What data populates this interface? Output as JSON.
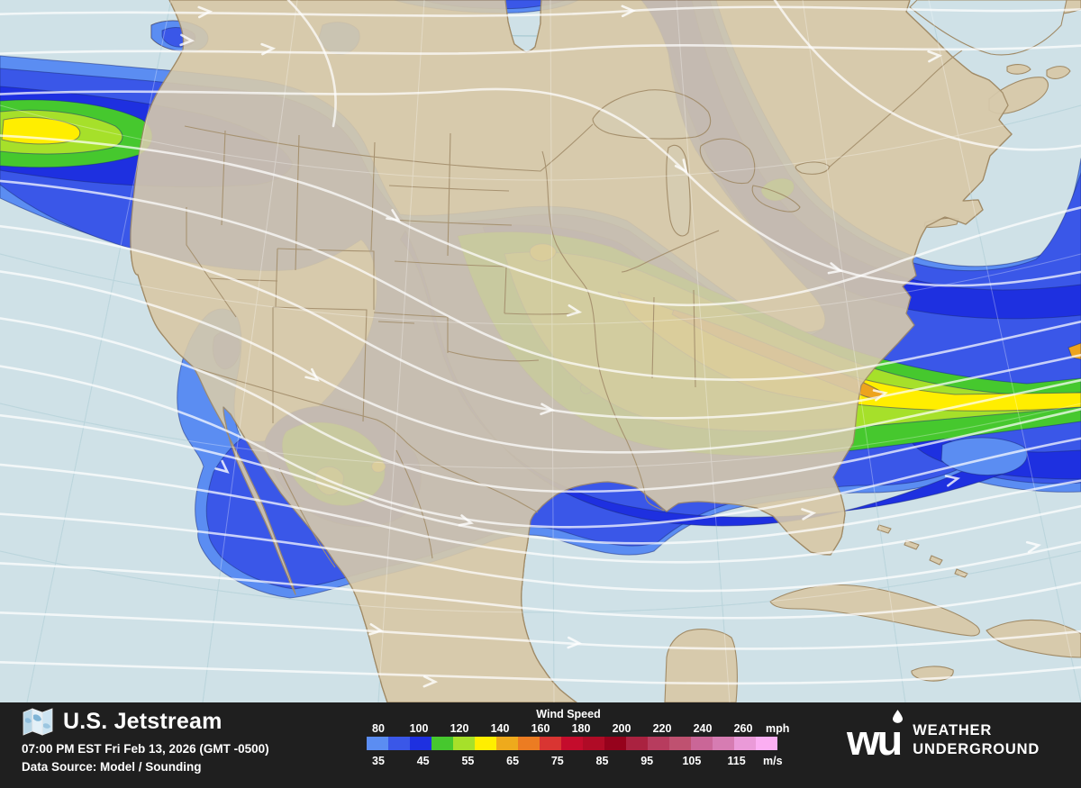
{
  "header": {
    "title": "U.S. Jetstream",
    "timestamp": "07:00 PM EST Fri Feb 13, 2026 (GMT -0500)",
    "data_source": "Data Source: Model / Sounding"
  },
  "legend": {
    "title": "Wind Speed",
    "mph_values": [
      "80",
      "100",
      "120",
      "140",
      "160",
      "180",
      "200",
      "220",
      "240",
      "260"
    ],
    "mph_unit": "mph",
    "ms_values": [
      "35",
      "45",
      "55",
      "65",
      "75",
      "85",
      "95",
      "105",
      "115"
    ],
    "ms_unit": "m/s",
    "colors": [
      "#5b8df2",
      "#3a57e8",
      "#1e30e0",
      "#46c82e",
      "#a6e02a",
      "#ffee00",
      "#eeaa1c",
      "#ec7c22",
      "#d93532",
      "#c40c2c",
      "#b00b26",
      "#96021c",
      "#aa2240",
      "#b73c5e",
      "#bf5170",
      "#ca6697",
      "#d67cb2",
      "#ea9ad8",
      "#fbaef2"
    ]
  },
  "brand": {
    "mark": "wu",
    "line1": "WEATHER",
    "line2": "UNDERGROUND"
  },
  "map_colors": {
    "ocean": "#cfe1e7",
    "land": "#d7caac",
    "border": "#a5906e",
    "contour_outline": "#1a2a78",
    "streamline": "#ffffff",
    "jet_levels": [
      "#5b8df2",
      "#3a57e8",
      "#1e30e0",
      "#46c82e",
      "#a6e02a",
      "#ffee00",
      "#eda41e"
    ]
  }
}
